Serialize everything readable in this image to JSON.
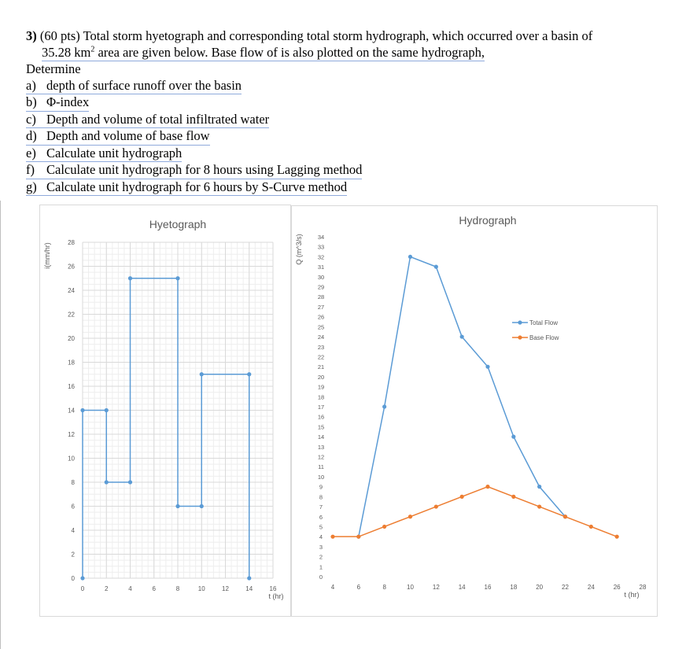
{
  "problem": {
    "number": "3)",
    "intro_line1": "(60 pts) Total storm hyetograph and corresponding total storm hydrograph, which occurred over a basin of",
    "intro_line2_pre": "35.28 km",
    "intro_line2_sup": "2",
    "intro_line2_post": " area are given below. Base flow of is also plotted on the same hydrograph,",
    "determine": "Determine",
    "items": [
      {
        "label": "a)",
        "text": "depth of surface runoff over the basin"
      },
      {
        "label": "b)",
        "text": "Φ-index"
      },
      {
        "label": "c)",
        "text": "Depth and volume of total infiltrated water"
      },
      {
        "label": "d)",
        "text": "Depth and volume of base flow"
      },
      {
        "label": "e)",
        "text": "Calculate unit hydrograph"
      },
      {
        "label": "f)",
        "text": "Calculate unit hydrograph for 8 hours using Lagging method"
      },
      {
        "label": "g)",
        "text": "Calculate unit hydrograph for 6 hours by S-Curve method"
      }
    ]
  },
  "chart_data": [
    {
      "type": "line",
      "title": "Hyetograph",
      "xlabel": "t (hr)",
      "ylabel": "i(mm/hr)",
      "xlim": [
        0,
        16
      ],
      "ylim": [
        0,
        28
      ],
      "xticks": [
        "0",
        "2",
        "4",
        "6",
        "8",
        "10",
        "12",
        "14",
        "16"
      ],
      "yticks": [
        "0",
        "2",
        "4",
        "6",
        "8",
        "10",
        "12",
        "14",
        "16",
        "18",
        "20",
        "22",
        "24",
        "26",
        "28"
      ],
      "grid": true,
      "color": "#5b9bd5",
      "series": [
        {
          "x": [
            0,
            0,
            2,
            2,
            4,
            4,
            8,
            8,
            10,
            10,
            14,
            14
          ],
          "y": [
            0,
            14,
            14,
            8,
            8,
            25,
            25,
            6,
            6,
            17,
            17,
            0
          ]
        }
      ]
    },
    {
      "type": "line",
      "title": "Hydrograph",
      "xlabel": "t (hr)",
      "ylabel": "Q (m^3/s)",
      "xlim": [
        4,
        28
      ],
      "ylim": [
        0,
        34
      ],
      "xticks": [
        "4",
        "6",
        "8",
        "10",
        "12",
        "14",
        "16",
        "18",
        "20",
        "22",
        "24",
        "26",
        "28"
      ],
      "yticks": [
        "0",
        "1",
        "2",
        "3",
        "4",
        "5",
        "6",
        "7",
        "8",
        "9",
        "10",
        "11",
        "12",
        "13",
        "14",
        "15",
        "16",
        "17",
        "18",
        "19",
        "20",
        "21",
        "22",
        "23",
        "24",
        "25",
        "26",
        "27",
        "28",
        "29",
        "30",
        "31",
        "32",
        "33",
        "34"
      ],
      "legend": "right",
      "series": [
        {
          "name": "Total Flow",
          "color": "#5b9bd5",
          "x": [
            6,
            8,
            10,
            12,
            14,
            16,
            18,
            20,
            22
          ],
          "y": [
            4,
            17,
            32,
            31,
            24,
            21,
            14,
            9,
            6
          ]
        },
        {
          "name": "Base Flow",
          "color": "#ed7d31",
          "x": [
            4,
            6,
            8,
            10,
            12,
            14,
            16,
            18,
            20,
            22,
            24,
            26
          ],
          "y": [
            4,
            4,
            5,
            6,
            7,
            8,
            9,
            8,
            7,
            6,
            5,
            4
          ]
        }
      ]
    }
  ]
}
